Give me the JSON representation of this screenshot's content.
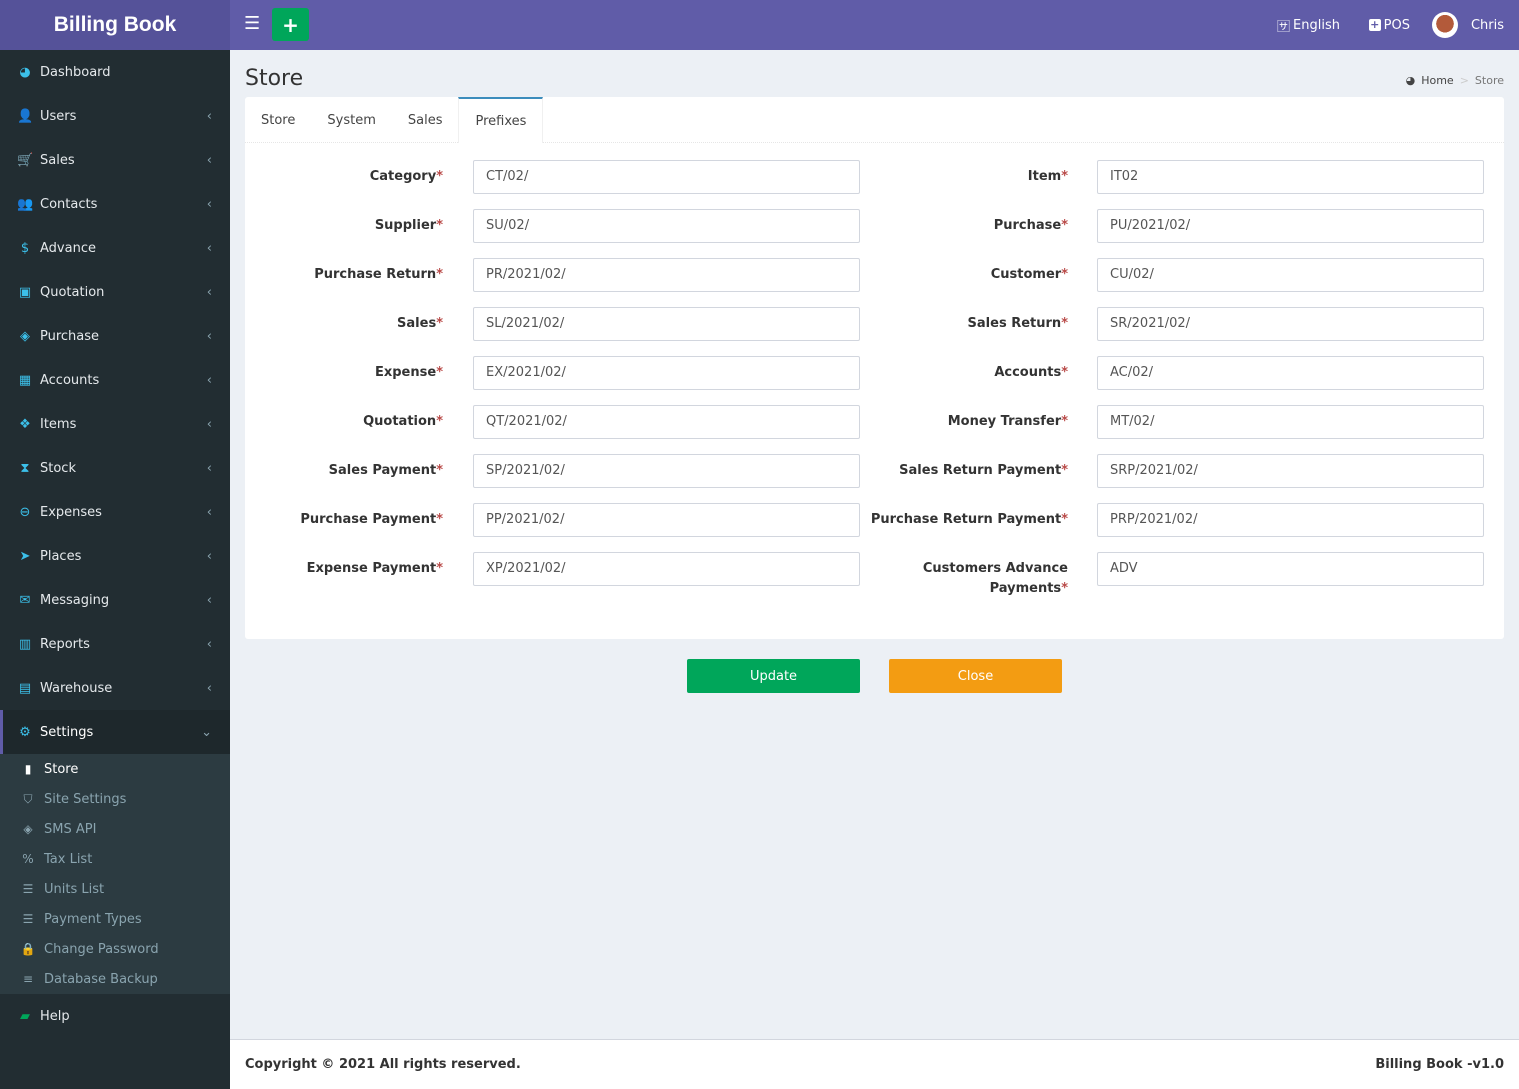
{
  "app": {
    "title": "Billing Book"
  },
  "topbar": {
    "language": "English",
    "pos": "POS",
    "user": "Chris"
  },
  "sidebar": {
    "items": [
      {
        "label": "Dashboard",
        "icon": "dashboard-icon",
        "glyph": "◕"
      },
      {
        "label": "Users",
        "icon": "user-plus-icon",
        "glyph": "👤"
      },
      {
        "label": "Sales",
        "icon": "cart-icon",
        "glyph": "🛒"
      },
      {
        "label": "Contacts",
        "icon": "users-icon",
        "glyph": "👥"
      },
      {
        "label": "Advance",
        "icon": "dollar-icon",
        "glyph": "$"
      },
      {
        "label": "Quotation",
        "icon": "calendar-plus-icon",
        "glyph": "▣"
      },
      {
        "label": "Purchase",
        "icon": "cube-icon",
        "glyph": "◈"
      },
      {
        "label": "Accounts",
        "icon": "th-large-icon",
        "glyph": "▦"
      },
      {
        "label": "Items",
        "icon": "cubes-icon",
        "glyph": "❖"
      },
      {
        "label": "Stock",
        "icon": "hourglass-icon",
        "glyph": "⧗"
      },
      {
        "label": "Expenses",
        "icon": "minus-circle-icon",
        "glyph": "⊖"
      },
      {
        "label": "Places",
        "icon": "paper-plane-icon",
        "glyph": "➤"
      },
      {
        "label": "Messaging",
        "icon": "envelope-icon",
        "glyph": "✉"
      },
      {
        "label": "Reports",
        "icon": "bar-chart-icon",
        "glyph": "▥"
      },
      {
        "label": "Warehouse",
        "icon": "building-icon",
        "glyph": "▤"
      }
    ],
    "settings": {
      "label": "Settings",
      "sub": [
        {
          "label": "Store",
          "icon": "briefcase-icon",
          "glyph": "▮"
        },
        {
          "label": "Site Settings",
          "icon": "shield-icon",
          "glyph": "⛉"
        },
        {
          "label": "SMS API",
          "icon": "cube-icon",
          "glyph": "◈"
        },
        {
          "label": "Tax List",
          "icon": "percent-icon",
          "glyph": "%"
        },
        {
          "label": "Units List",
          "icon": "list-icon",
          "glyph": "☰"
        },
        {
          "label": "Payment Types",
          "icon": "list-icon",
          "glyph": "☰"
        },
        {
          "label": "Change Password",
          "icon": "lock-icon",
          "glyph": "🔒"
        },
        {
          "label": "Database Backup",
          "icon": "database-icon",
          "glyph": "≡"
        }
      ]
    },
    "help": "Help"
  },
  "page": {
    "title": "Store",
    "breadcrumb": {
      "home": "Home",
      "current": "Store"
    }
  },
  "tabs": [
    "Store",
    "System",
    "Sales",
    "Prefixes"
  ],
  "active_tab": "Prefixes",
  "form": {
    "left": [
      {
        "label": "Category",
        "value": "CT/02/"
      },
      {
        "label": "Supplier",
        "value": "SU/02/"
      },
      {
        "label": "Purchase Return",
        "value": "PR/2021/02/"
      },
      {
        "label": "Sales",
        "value": "SL/2021/02/"
      },
      {
        "label": "Expense",
        "value": "EX/2021/02/"
      },
      {
        "label": "Quotation",
        "value": "QT/2021/02/"
      },
      {
        "label": "Sales Payment",
        "value": "SP/2021/02/"
      },
      {
        "label": "Purchase Payment",
        "value": "PP/2021/02/"
      },
      {
        "label": "Expense Payment",
        "value": "XP/2021/02/"
      }
    ],
    "right": [
      {
        "label": "Item",
        "value": "IT02"
      },
      {
        "label": "Purchase",
        "value": "PU/2021/02/"
      },
      {
        "label": "Customer",
        "value": "CU/02/"
      },
      {
        "label": "Sales Return",
        "value": "SR/2021/02/"
      },
      {
        "label": "Accounts",
        "value": "AC/02/"
      },
      {
        "label": "Money Transfer",
        "value": "MT/02/"
      },
      {
        "label": "Sales Return Payment",
        "value": "SRP/2021/02/"
      },
      {
        "label": "Purchase Return Payment",
        "value": "PRP/2021/02/"
      },
      {
        "label": "Customers Advance Payments",
        "value": "ADV"
      }
    ],
    "required_mark": "*"
  },
  "buttons": {
    "update": "Update",
    "close": "Close"
  },
  "colors": {
    "header": "#605ca8",
    "sidebar": "#222d32",
    "update": "#00a65a",
    "close": "#f39c12"
  },
  "footer": {
    "copyright": "Copyright © 2021 All rights reserved.",
    "version": "Billing Book -v1.0"
  }
}
